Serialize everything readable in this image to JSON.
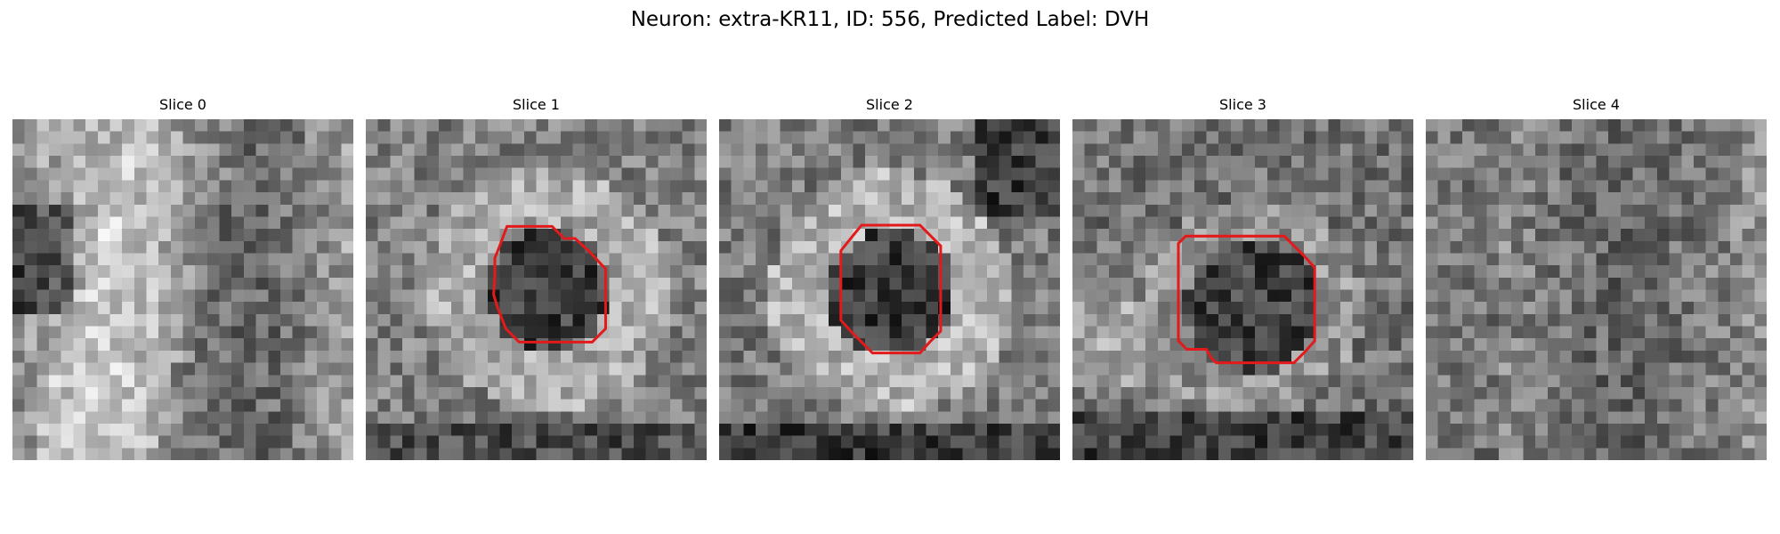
{
  "title": "Neuron: extra-KR11, ID: 556, Predicted Label: DVH",
  "contour_color": "#e31a1c",
  "colormap": "gray",
  "slices": [
    {
      "label": "Slice 0",
      "has_contour": false
    },
    {
      "label": "Slice 1",
      "has_contour": true
    },
    {
      "label": "Slice 2",
      "has_contour": true
    },
    {
      "label": "Slice 3",
      "has_contour": true
    },
    {
      "label": "Slice 4",
      "has_contour": false
    }
  ]
}
